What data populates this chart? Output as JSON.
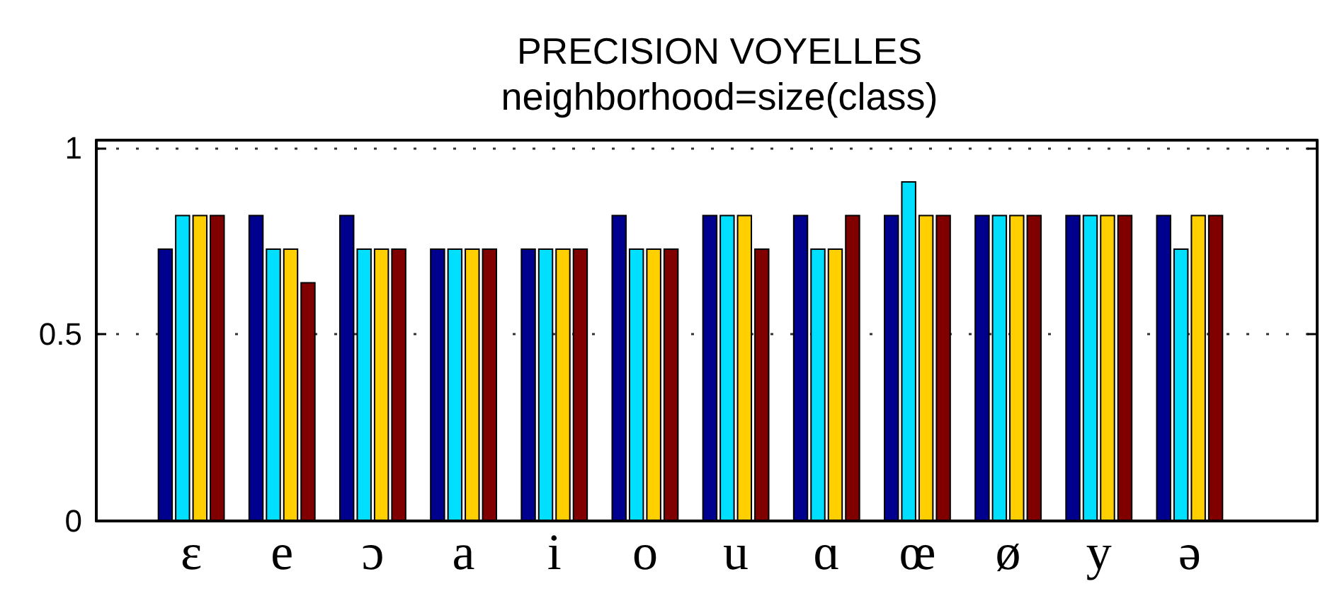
{
  "chart_data": {
    "type": "bar",
    "title": "PRECISION VOYELLES",
    "subtitle": "neighborhood=size(class)",
    "categories": [
      "ε",
      "e",
      "ɔ",
      "a",
      "i",
      "o",
      "u",
      "ɑ",
      "œ",
      "ø",
      "y",
      "ə"
    ],
    "series": [
      {
        "color": "#00008f",
        "values": [
          0.73,
          0.82,
          0.82,
          0.73,
          0.73,
          0.82,
          0.82,
          0.82,
          0.82,
          0.82,
          0.82,
          0.82
        ]
      },
      {
        "color": "#00dfff",
        "values": [
          0.82,
          0.73,
          0.73,
          0.73,
          0.73,
          0.73,
          0.82,
          0.73,
          0.91,
          0.82,
          0.82,
          0.73
        ]
      },
      {
        "color": "#ffcf00",
        "values": [
          0.82,
          0.73,
          0.73,
          0.73,
          0.73,
          0.73,
          0.82,
          0.73,
          0.82,
          0.82,
          0.82,
          0.82
        ]
      },
      {
        "color": "#800000",
        "values": [
          0.82,
          0.64,
          0.73,
          0.73,
          0.73,
          0.73,
          0.73,
          0.82,
          0.82,
          0.82,
          0.82,
          0.82
        ]
      }
    ],
    "ylim": [
      0,
      1.02
    ],
    "yticks": [
      0,
      0.5,
      1
    ],
    "grid": "y"
  }
}
